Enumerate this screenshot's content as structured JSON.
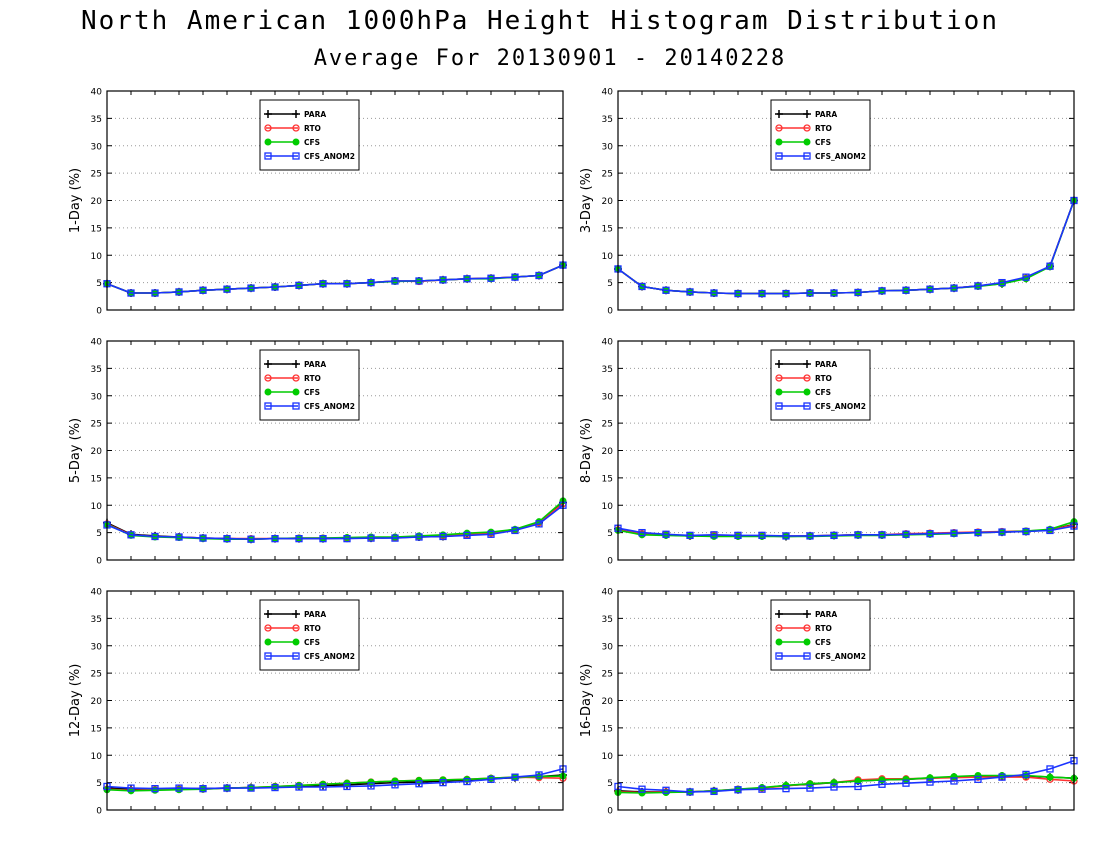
{
  "title": "North American 1000hPa Height Histogram Distribution",
  "subtitle": "Average For 20130901 - 20140228",
  "legend_entries": [
    "PARA",
    "RTO",
    "CFS",
    "CFS_ANOM2"
  ],
  "series_colors": {
    "PARA": "#000000",
    "RTO": "#ff3333",
    "CFS": "#00cc00",
    "CFS_ANOM2": "#1a33ff"
  },
  "chart_data": [
    {
      "type": "line",
      "ylabel": "1-Day (%)",
      "ylim": [
        0,
        40
      ],
      "yticks": [
        0,
        5,
        10,
        15,
        20,
        25,
        30,
        35,
        40
      ],
      "grid": true,
      "legend_position": "top-center",
      "series": [
        {
          "name": "PARA",
          "values": [
            4.8,
            3.1,
            3.1,
            3.3,
            3.6,
            3.8,
            4.0,
            4.2,
            4.5,
            4.8,
            4.8,
            5.0,
            5.3,
            5.3,
            5.5,
            5.7,
            5.8,
            6.0,
            6.3,
            8.2
          ]
        },
        {
          "name": "RTO",
          "values": [
            4.8,
            3.1,
            3.1,
            3.3,
            3.6,
            3.8,
            4.0,
            4.2,
            4.5,
            4.8,
            4.8,
            5.0,
            5.3,
            5.2,
            5.5,
            5.7,
            5.8,
            6.0,
            6.3,
            8.2
          ]
        },
        {
          "name": "CFS",
          "values": [
            4.8,
            3.1,
            3.1,
            3.3,
            3.6,
            3.8,
            4.0,
            4.2,
            4.5,
            4.8,
            4.8,
            5.0,
            5.2,
            5.3,
            5.5,
            5.7,
            5.7,
            6.0,
            6.3,
            8.2
          ]
        },
        {
          "name": "CFS_ANOM2",
          "values": [
            4.8,
            3.1,
            3.1,
            3.3,
            3.6,
            3.8,
            4.0,
            4.2,
            4.5,
            4.8,
            4.8,
            5.0,
            5.3,
            5.3,
            5.5,
            5.7,
            5.8,
            6.0,
            6.3,
            8.2
          ]
        }
      ]
    },
    {
      "type": "line",
      "ylabel": "3-Day (%)",
      "ylim": [
        0,
        40
      ],
      "yticks": [
        0,
        5,
        10,
        15,
        20,
        25,
        30,
        35,
        40
      ],
      "grid": true,
      "legend_position": "top-center",
      "series": [
        {
          "name": "PARA",
          "values": [
            7.5,
            4.3,
            3.6,
            3.3,
            3.1,
            3.0,
            3.0,
            3.0,
            3.1,
            3.1,
            3.2,
            3.5,
            3.6,
            3.8,
            4.0,
            4.4,
            4.8,
            5.8,
            8.0,
            20.0
          ]
        },
        {
          "name": "RTO",
          "values": [
            7.5,
            4.3,
            3.6,
            3.3,
            3.1,
            3.0,
            3.0,
            3.0,
            3.1,
            3.1,
            3.2,
            3.5,
            3.6,
            3.8,
            4.0,
            4.4,
            4.9,
            5.8,
            8.0,
            20.0
          ]
        },
        {
          "name": "CFS",
          "values": [
            7.5,
            4.3,
            3.6,
            3.3,
            3.1,
            3.0,
            3.0,
            3.0,
            3.1,
            3.1,
            3.2,
            3.5,
            3.6,
            3.8,
            4.0,
            4.3,
            4.8,
            5.7,
            7.9,
            20.0
          ]
        },
        {
          "name": "CFS_ANOM2",
          "values": [
            7.5,
            4.3,
            3.6,
            3.3,
            3.1,
            3.0,
            3.0,
            3.0,
            3.1,
            3.1,
            3.2,
            3.5,
            3.6,
            3.8,
            4.0,
            4.4,
            5.0,
            6.0,
            8.0,
            20.0
          ]
        }
      ]
    },
    {
      "type": "line",
      "ylabel": "5-Day (%)",
      "ylim": [
        0,
        40
      ],
      "yticks": [
        0,
        5,
        10,
        15,
        20,
        25,
        30,
        35,
        40
      ],
      "grid": true,
      "legend_position": "top-center",
      "series": [
        {
          "name": "PARA",
          "values": [
            6.8,
            4.7,
            4.4,
            4.2,
            4.0,
            3.9,
            3.8,
            3.9,
            3.9,
            3.9,
            4.0,
            4.0,
            4.1,
            4.2,
            4.3,
            4.6,
            4.8,
            5.5,
            6.8,
            10.5
          ]
        },
        {
          "name": "RTO",
          "values": [
            6.6,
            4.6,
            4.3,
            4.2,
            4.0,
            3.9,
            3.9,
            3.9,
            4.0,
            4.0,
            4.0,
            4.1,
            4.1,
            4.3,
            4.4,
            4.6,
            4.9,
            5.5,
            6.8,
            10.3
          ]
        },
        {
          "name": "CFS",
          "values": [
            6.5,
            4.5,
            4.2,
            4.1,
            3.9,
            3.8,
            3.8,
            3.9,
            4.0,
            4.0,
            4.1,
            4.2,
            4.2,
            4.4,
            4.6,
            4.9,
            5.1,
            5.6,
            7.0,
            10.8
          ]
        },
        {
          "name": "CFS_ANOM2",
          "values": [
            6.4,
            4.6,
            4.3,
            4.2,
            4.0,
            3.9,
            3.8,
            3.9,
            3.9,
            3.9,
            3.9,
            4.0,
            4.0,
            4.2,
            4.3,
            4.5,
            4.7,
            5.4,
            6.6,
            10.0
          ]
        }
      ]
    },
    {
      "type": "line",
      "ylabel": "8-Day (%)",
      "ylim": [
        0,
        40
      ],
      "yticks": [
        0,
        5,
        10,
        15,
        20,
        25,
        30,
        35,
        40
      ],
      "grid": true,
      "legend_position": "top-center",
      "series": [
        {
          "name": "PARA",
          "values": [
            5.7,
            4.9,
            4.6,
            4.4,
            4.5,
            4.4,
            4.4,
            4.3,
            4.4,
            4.5,
            4.6,
            4.6,
            4.7,
            4.8,
            4.9,
            5.0,
            5.1,
            5.2,
            5.5,
            6.5
          ]
        },
        {
          "name": "RTO",
          "values": [
            5.5,
            4.8,
            4.6,
            4.4,
            4.5,
            4.4,
            4.4,
            4.4,
            4.4,
            4.5,
            4.6,
            4.6,
            4.8,
            4.9,
            5.0,
            5.1,
            5.2,
            5.3,
            5.5,
            6.4
          ]
        },
        {
          "name": "CFS",
          "values": [
            5.4,
            4.6,
            4.5,
            4.4,
            4.3,
            4.3,
            4.3,
            4.3,
            4.3,
            4.4,
            4.5,
            4.5,
            4.6,
            4.7,
            4.8,
            5.0,
            5.1,
            5.3,
            5.6,
            7.0
          ]
        },
        {
          "name": "CFS_ANOM2",
          "values": [
            5.8,
            5.0,
            4.7,
            4.5,
            4.6,
            4.5,
            4.5,
            4.4,
            4.4,
            4.5,
            4.6,
            4.6,
            4.7,
            4.8,
            4.9,
            5.0,
            5.1,
            5.2,
            5.4,
            6.2
          ]
        }
      ]
    },
    {
      "type": "line",
      "ylabel": "12-Day (%)",
      "ylim": [
        0,
        40
      ],
      "yticks": [
        0,
        5,
        10,
        15,
        20,
        25,
        30,
        35,
        40
      ],
      "grid": true,
      "legend_position": "top-center",
      "series": [
        {
          "name": "PARA",
          "values": [
            4.0,
            3.8,
            3.8,
            3.9,
            3.9,
            4.0,
            4.1,
            4.2,
            4.3,
            4.5,
            4.6,
            4.8,
            5.0,
            5.1,
            5.3,
            5.5,
            5.7,
            5.9,
            6.1,
            6.4
          ]
        },
        {
          "name": "RTO",
          "values": [
            3.8,
            3.6,
            3.7,
            3.8,
            3.8,
            4.0,
            4.1,
            4.3,
            4.5,
            4.7,
            4.9,
            5.1,
            5.3,
            5.4,
            5.5,
            5.6,
            5.8,
            6.0,
            5.9,
            5.8
          ]
        },
        {
          "name": "CFS",
          "values": [
            3.7,
            3.5,
            3.6,
            3.7,
            3.8,
            4.0,
            4.1,
            4.3,
            4.5,
            4.7,
            4.9,
            5.1,
            5.3,
            5.4,
            5.5,
            5.6,
            5.8,
            6.0,
            6.1,
            6.2
          ]
        },
        {
          "name": "CFS_ANOM2",
          "values": [
            4.3,
            4.0,
            3.9,
            4.0,
            3.9,
            4.0,
            4.0,
            4.1,
            4.2,
            4.2,
            4.3,
            4.4,
            4.6,
            4.8,
            5.0,
            5.2,
            5.6,
            6.0,
            6.4,
            7.5
          ]
        }
      ]
    },
    {
      "type": "line",
      "ylabel": "16-Day (%)",
      "ylim": [
        0,
        40
      ],
      "yticks": [
        0,
        5,
        10,
        15,
        20,
        25,
        30,
        35,
        40
      ],
      "grid": true,
      "legend_position": "top-center",
      "series": [
        {
          "name": "PARA",
          "values": [
            3.5,
            3.3,
            3.3,
            3.3,
            3.5,
            3.7,
            4.0,
            4.5,
            4.7,
            5.0,
            5.3,
            5.5,
            5.6,
            5.8,
            6.0,
            6.1,
            6.2,
            6.2,
            6.0,
            5.8
          ]
        },
        {
          "name": "RTO",
          "values": [
            3.3,
            3.2,
            3.3,
            3.3,
            3.5,
            3.8,
            4.0,
            4.4,
            4.8,
            5.0,
            5.5,
            5.7,
            5.7,
            5.8,
            5.9,
            6.0,
            6.0,
            6.0,
            5.6,
            5.3
          ]
        },
        {
          "name": "CFS",
          "values": [
            3.2,
            3.1,
            3.2,
            3.3,
            3.5,
            3.8,
            4.1,
            4.5,
            4.8,
            5.0,
            5.3,
            5.5,
            5.6,
            5.9,
            6.1,
            6.3,
            6.3,
            6.3,
            6.0,
            5.8
          ]
        },
        {
          "name": "CFS_ANOM2",
          "values": [
            4.3,
            3.8,
            3.6,
            3.3,
            3.4,
            3.7,
            3.8,
            3.9,
            4.0,
            4.2,
            4.3,
            4.7,
            4.9,
            5.1,
            5.3,
            5.6,
            6.0,
            6.5,
            7.5,
            9.0
          ]
        }
      ]
    }
  ]
}
